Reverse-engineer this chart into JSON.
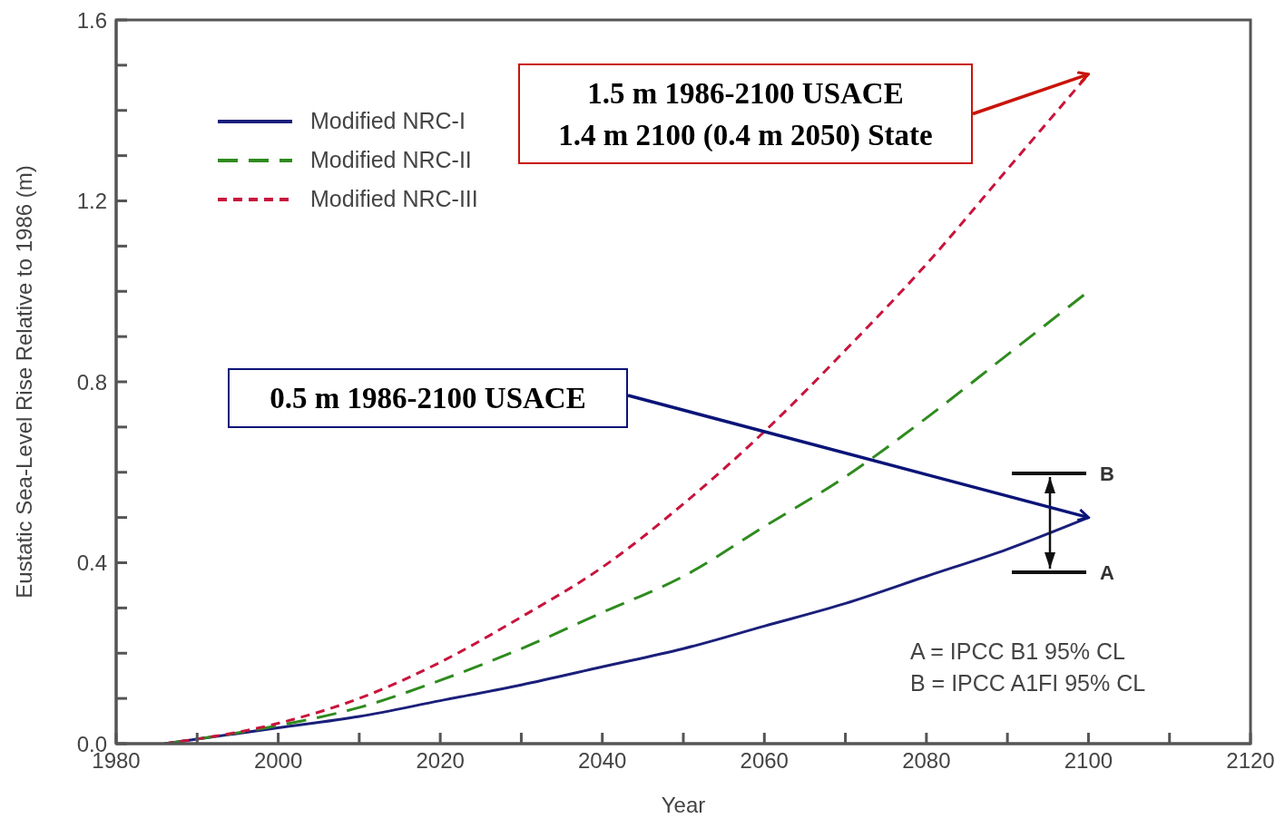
{
  "chart_data": {
    "type": "line",
    "xlabel": "Year",
    "ylabel": "Eustatic Sea-Level Rise Relative to 1986 (m)",
    "x": [
      1986,
      2000,
      2010,
      2020,
      2030,
      2040,
      2050,
      2060,
      2070,
      2080,
      2090,
      2100
    ],
    "series": [
      {
        "name": "Modified NRC-I",
        "color": "#1a1f7a",
        "line_style": "solid",
        "values": [
          0,
          0.035,
          0.06,
          0.095,
          0.13,
          0.17,
          0.21,
          0.26,
          0.31,
          0.37,
          0.43,
          0.5
        ]
      },
      {
        "name": "Modified NRC-II",
        "color": "#2e8b1e",
        "line_style": "dashed",
        "values": [
          0,
          0.04,
          0.08,
          0.14,
          0.21,
          0.29,
          0.37,
          0.48,
          0.59,
          0.72,
          0.86,
          1.0
        ]
      },
      {
        "name": "Modified NRC-III",
        "color": "#c8143c",
        "line_style": "dotted",
        "values": [
          0,
          0.045,
          0.1,
          0.18,
          0.28,
          0.39,
          0.53,
          0.69,
          0.87,
          1.06,
          1.27,
          1.48
        ]
      }
    ],
    "xlim": [
      1980,
      2120
    ],
    "xticks": [
      1980,
      {
        "value": 1990,
        "label": null
      },
      2000,
      {
        "value": 2010,
        "label": null
      },
      2020,
      {
        "value": 2030,
        "label": null
      },
      2040,
      {
        "value": 2050,
        "label": null
      },
      2060,
      {
        "value": 2070,
        "label": null
      },
      2080,
      {
        "value": 2090,
        "label": null
      },
      2100,
      {
        "value": 2110,
        "label": null
      },
      2120
    ],
    "ylim": [
      0,
      1.6
    ],
    "yticks": [
      {
        "value": 0,
        "label": "0.0"
      },
      {
        "value": 0.1,
        "label": null
      },
      {
        "value": 0.2,
        "label": null
      },
      {
        "value": 0.3,
        "label": null
      },
      {
        "value": 0.4,
        "label": "0.4"
      },
      {
        "value": 0.5,
        "label": null
      },
      {
        "value": 0.6,
        "label": null
      },
      {
        "value": 0.7,
        "label": null
      },
      {
        "value": 0.8,
        "label": "0.8"
      },
      {
        "value": 0.9,
        "label": null
      },
      {
        "value": 1.0,
        "label": null
      },
      {
        "value": 1.1,
        "label": null
      },
      {
        "value": 1.2,
        "label": "1.2"
      },
      {
        "value": 1.3,
        "label": null
      },
      {
        "value": 1.4,
        "label": null
      },
      {
        "value": 1.5,
        "label": null
      },
      {
        "value": 1.6,
        "label": "1.6"
      }
    ],
    "grid": false,
    "legend": "top left",
    "marker": "none",
    "annotations": [
      "1.5 m 1986-2100 USACE\n1.4 m 2100 (0.4 m 2050) State",
      "0.5 m 1986-2100 USACE",
      "B",
      "A",
      "A = IPCC B1 95% CL",
      "B = IPCC A1FI 95% CL"
    ]
  }
}
